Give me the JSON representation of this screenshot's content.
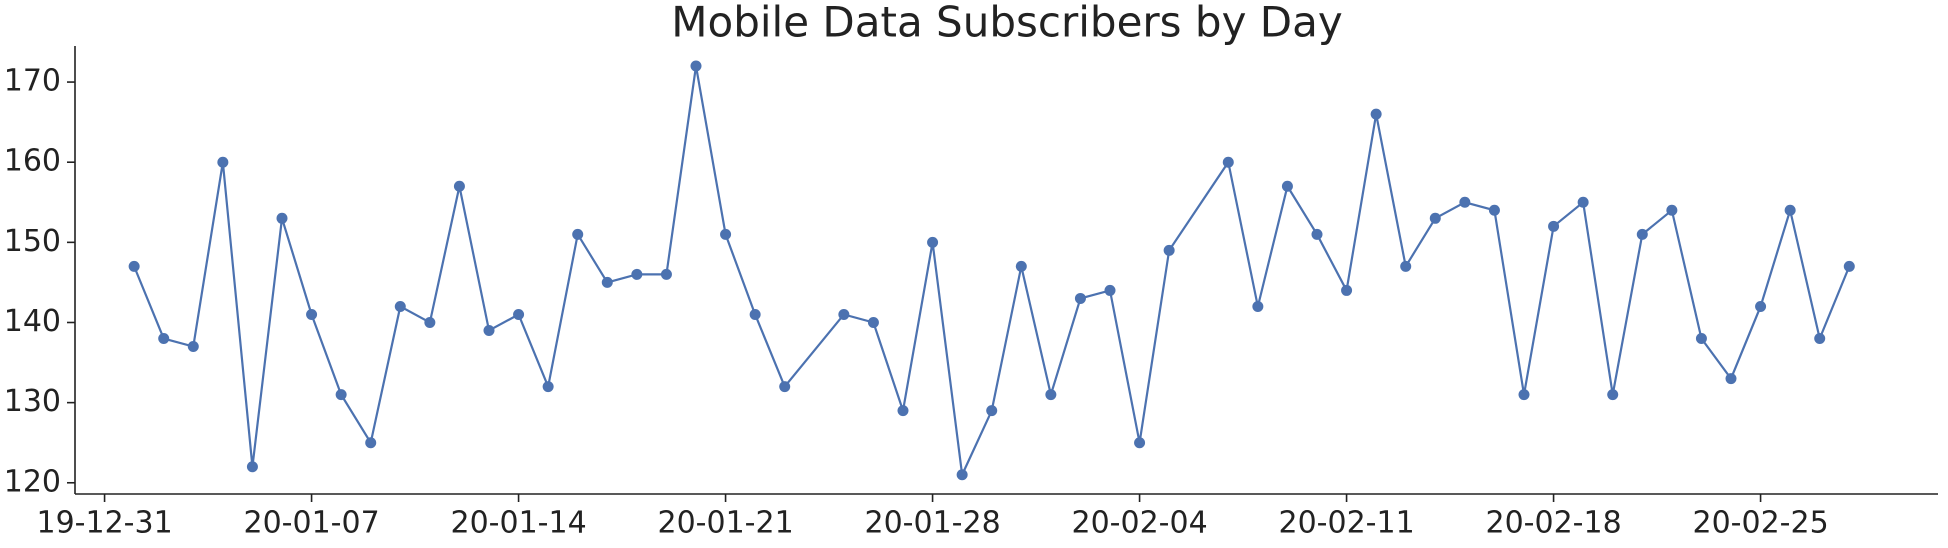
{
  "chart_data": {
    "type": "line",
    "title": "Mobile Data Subscribers by Day",
    "x": [
      "20-01-01",
      "20-01-02",
      "20-01-03",
      "20-01-04",
      "20-01-05",
      "20-01-06",
      "20-01-07",
      "20-01-08",
      "20-01-09",
      "20-01-10",
      "20-01-11",
      "20-01-12",
      "20-01-13",
      "20-01-14",
      "20-01-15",
      "20-01-16",
      "20-01-17",
      "20-01-18",
      "20-01-19",
      "20-01-20",
      "20-01-21",
      "20-01-22",
      "20-01-23",
      "20-01-25",
      "20-01-26",
      "20-01-27",
      "20-01-28",
      "20-01-29",
      "20-01-30",
      "20-01-31",
      "20-02-01",
      "20-02-02",
      "20-02-03",
      "20-02-04",
      "20-02-05",
      "20-02-07",
      "20-02-08",
      "20-02-09",
      "20-02-10",
      "20-02-11",
      "20-02-12",
      "20-02-13",
      "20-02-14",
      "20-02-15",
      "20-02-16",
      "20-02-17",
      "20-02-18",
      "20-02-19",
      "20-02-20",
      "20-02-21",
      "20-02-22",
      "20-02-23",
      "20-02-24",
      "20-02-25",
      "20-02-26",
      "20-02-27",
      "20-02-28"
    ],
    "series": [
      {
        "color": "#4c72b0",
        "values": [
          147,
          138,
          137,
          160,
          122,
          153,
          141,
          131,
          125,
          142,
          140,
          157,
          139,
          141,
          132,
          151,
          145,
          146,
          146,
          172,
          151,
          141,
          132,
          141,
          140,
          129,
          150,
          121,
          129,
          147,
          131,
          143,
          144,
          125,
          149,
          160,
          142,
          157,
          151,
          144,
          166,
          147,
          153,
          155,
          154,
          131,
          152,
          155,
          131,
          151,
          154,
          138,
          133,
          142,
          154,
          138,
          147
        ]
      }
    ],
    "xlim": [
      "19-12-30",
      "20-03-02"
    ],
    "xticks": [
      "19-12-31",
      "20-01-07",
      "20-01-14",
      "20-01-21",
      "20-01-28",
      "20-02-04",
      "20-02-11",
      "20-02-18",
      "20-02-25"
    ],
    "ylim": [
      118.6,
      174.5
    ],
    "yticks": [
      120,
      130,
      140,
      150,
      160,
      170
    ],
    "grid": false
  }
}
